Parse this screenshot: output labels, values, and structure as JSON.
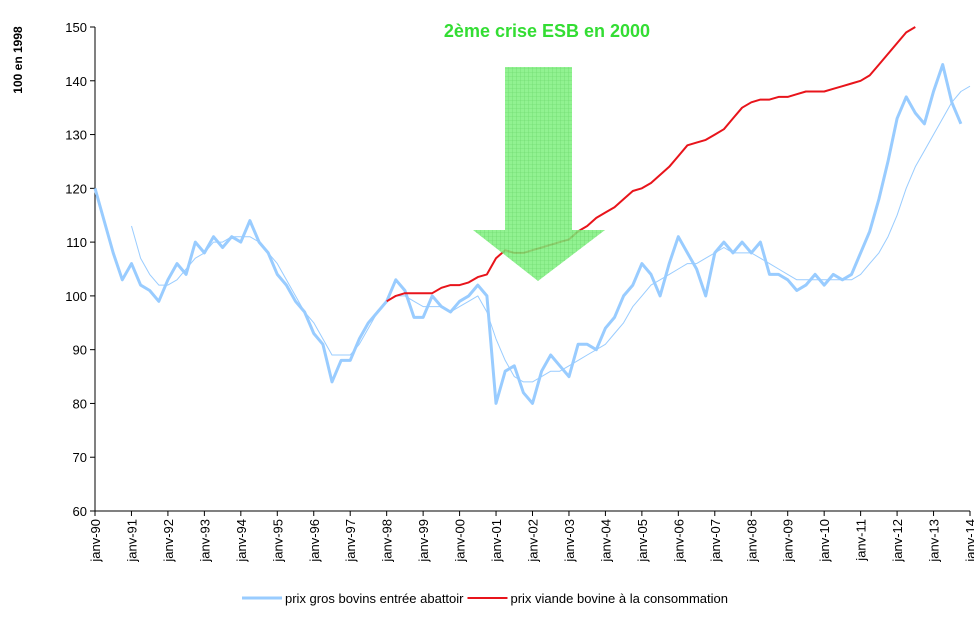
{
  "chart_data": {
    "type": "line",
    "y_label": "100 en 1998",
    "annotation": "2ème crise ESB en 2000",
    "annotation_color": "#33dd33",
    "categories": [
      "janv-90",
      null,
      null,
      null,
      "janv-91",
      null,
      null,
      null,
      "janv-92",
      null,
      null,
      null,
      "janv-93",
      null,
      null,
      null,
      "janv-94",
      null,
      null,
      null,
      "janv-95",
      null,
      null,
      null,
      "janv-96",
      null,
      null,
      null,
      "janv-97",
      null,
      null,
      null,
      "janv-98",
      null,
      null,
      null,
      "janv-99",
      null,
      null,
      null,
      "janv-00",
      null,
      null,
      null,
      "janv-01",
      null,
      null,
      null,
      "janv-02",
      null,
      null,
      null,
      "janv-03",
      null,
      null,
      null,
      "janv-04",
      null,
      null,
      null,
      "janv-05",
      null,
      null,
      null,
      "janv-06",
      null,
      null,
      null,
      "janv-07",
      null,
      null,
      null,
      "janv-08",
      null,
      null,
      null,
      "janv-09",
      null,
      null,
      null,
      "janv-10",
      null,
      null,
      null,
      "janv-11",
      null,
      null,
      null,
      "janv-12",
      null,
      null,
      null,
      "janv-13",
      null,
      null,
      null,
      "janv-14"
    ],
    "ylim": [
      60,
      150
    ],
    "yticks": [
      60,
      70,
      80,
      90,
      100,
      110,
      120,
      130,
      140,
      150
    ],
    "grid": false,
    "series": [
      {
        "name": "prix gros bovins entrée abattoir",
        "color": "#99ccff",
        "width": 3,
        "values": [
          120,
          114,
          108,
          103,
          106,
          102,
          101,
          99,
          103,
          106,
          104,
          110,
          108,
          111,
          109,
          111,
          110,
          114,
          110,
          108,
          104,
          102,
          99,
          97,
          93,
          91,
          84,
          88,
          88,
          92,
          95,
          97,
          99,
          103,
          101,
          96,
          96,
          100,
          98,
          97,
          99,
          100,
          102,
          100,
          80,
          86,
          87,
          82,
          80,
          86,
          89,
          87,
          85,
          91,
          91,
          90,
          94,
          96,
          100,
          102,
          106,
          104,
          100,
          106,
          111,
          108,
          105,
          100,
          108,
          110,
          108,
          110,
          108,
          110,
          104,
          104,
          103,
          101,
          102,
          104,
          102,
          104,
          103,
          104,
          108,
          112,
          118,
          125,
          133,
          137,
          134,
          132,
          138,
          143,
          136,
          132,
          null
        ]
      },
      {
        "color": "#99ccff",
        "width": 1,
        "values": [
          null,
          null,
          null,
          null,
          113,
          107,
          104,
          102,
          102,
          103,
          105,
          107,
          108,
          110,
          110,
          111,
          111,
          111,
          110,
          108,
          106,
          103,
          100,
          97,
          95,
          92,
          89,
          89,
          89,
          91,
          94,
          97,
          99,
          100,
          100,
          99,
          98,
          98,
          98,
          97,
          98,
          99,
          100,
          97,
          92,
          88,
          85,
          84,
          84,
          85,
          86,
          86,
          87,
          88,
          89,
          90,
          91,
          93,
          95,
          98,
          100,
          102,
          103,
          104,
          105,
          106,
          106,
          107,
          108,
          109,
          108,
          108,
          108,
          107,
          106,
          105,
          104,
          103,
          103,
          103,
          103,
          103,
          103,
          103,
          104,
          106,
          108,
          111,
          115,
          120,
          124,
          127,
          130,
          133,
          136,
          138,
          139
        ]
      },
      {
        "name": "prix viande bovine à la consommation",
        "color": "#e8141b",
        "width": 2,
        "values": [
          null,
          null,
          null,
          null,
          null,
          null,
          null,
          null,
          null,
          null,
          null,
          null,
          null,
          null,
          null,
          null,
          null,
          null,
          null,
          null,
          null,
          null,
          null,
          null,
          null,
          null,
          null,
          null,
          null,
          null,
          null,
          null,
          99,
          100,
          100.5,
          100.5,
          100.5,
          100.5,
          101.5,
          102,
          102,
          102.5,
          103.5,
          104,
          107,
          108.5,
          108,
          108,
          108.5,
          109,
          109.5,
          110,
          110.5,
          112,
          113,
          114.5,
          115.5,
          116.5,
          118,
          119.5,
          120,
          121,
          122.5,
          124,
          126,
          128,
          128.5,
          129,
          130,
          131,
          133,
          135,
          136,
          136.5,
          136.5,
          137,
          137,
          137.5,
          138,
          138,
          138,
          138.5,
          139,
          139.5,
          140,
          141,
          143,
          145,
          147,
          149,
          150,
          null,
          null,
          null,
          null,
          null,
          null
        ]
      }
    ]
  }
}
